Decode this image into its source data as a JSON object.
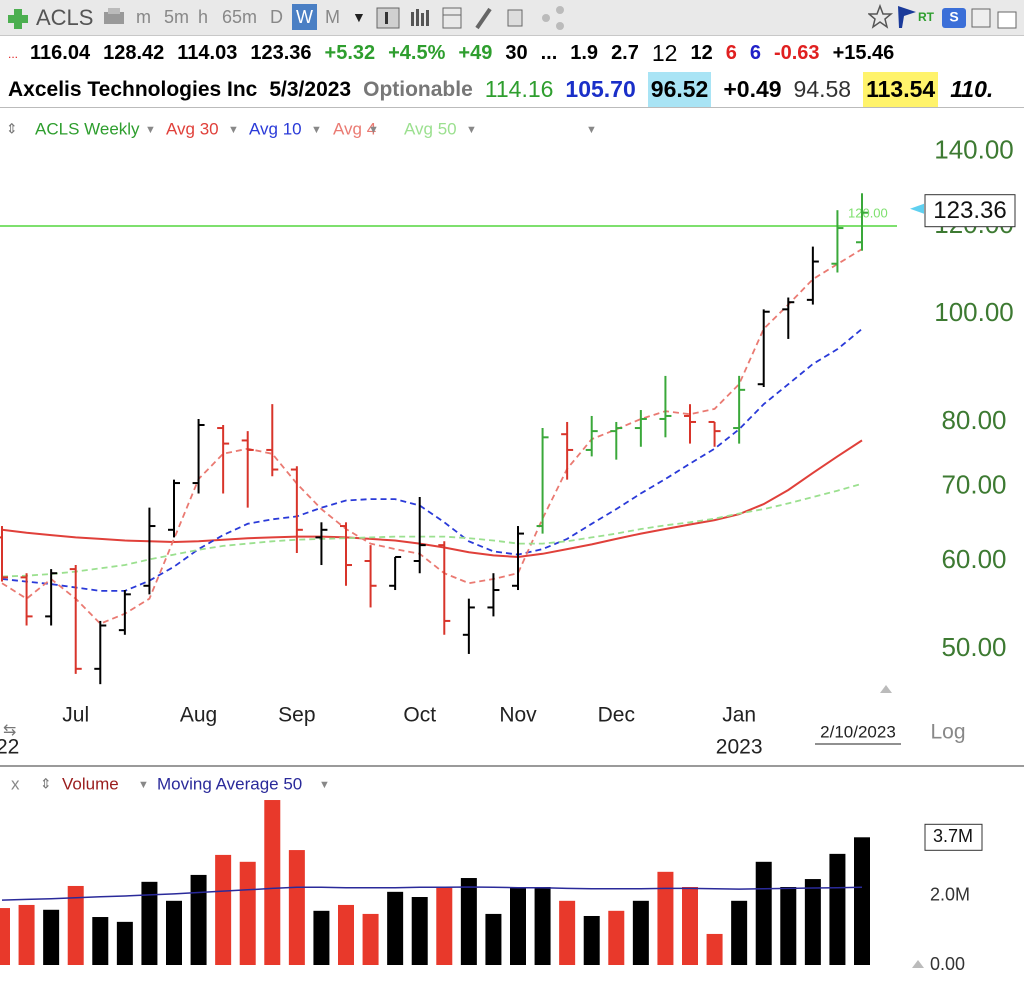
{
  "toolbar": {
    "symbol": "ACLS",
    "timeframes": [
      "m",
      "5m",
      "h",
      "65m",
      "D",
      "W",
      "M"
    ],
    "rt_label": "RT"
  },
  "quote_row": {
    "prefix": "...",
    "items": [
      {
        "text": "116.04",
        "color": "#000000",
        "bold": true
      },
      {
        "text": "128.42",
        "color": "#000000",
        "bold": true
      },
      {
        "text": "114.03",
        "color": "#000000",
        "bold": true
      },
      {
        "text": "123.36",
        "color": "#000000",
        "bold": true
      },
      {
        "text": "+5.32",
        "color": "#2e9e2e",
        "bold": true
      },
      {
        "text": "+4.5%",
        "color": "#2e9e2e",
        "bold": true
      },
      {
        "text": "+49",
        "color": "#2e9e2e",
        "bold": true
      },
      {
        "text": "30",
        "color": "#000000",
        "bold": true
      },
      {
        "text": "...",
        "color": "#000000",
        "bold": true
      },
      {
        "text": "1.9",
        "color": "#000000",
        "bold": true
      },
      {
        "text": "2.7",
        "color": "#000000",
        "bold": true
      },
      {
        "text": "12",
        "color": "#000000",
        "bold": false
      },
      {
        "text": "12",
        "color": "#000000",
        "bold": true
      },
      {
        "text": "6",
        "color": "#e02020",
        "bold": true
      },
      {
        "text": "6",
        "color": "#2020c8",
        "bold": true
      },
      {
        "text": "-0.63",
        "color": "#e02020",
        "bold": true
      },
      {
        "text": "+15.46",
        "color": "#000000",
        "bold": true
      }
    ]
  },
  "info_row": {
    "items": [
      {
        "text": "Axcelis Technologies Inc",
        "color": "#000000",
        "bold": true,
        "bg": null
      },
      {
        "text": "5/3/2023",
        "color": "#000000",
        "bold": true,
        "bg": null
      },
      {
        "text": "Optionable",
        "color": "#777777",
        "bold": true,
        "bg": null
      },
      {
        "text": "114.16",
        "color": "#2e9e2e",
        "bold": false,
        "bg": null
      },
      {
        "text": "105.70",
        "color": "#1a2fc8",
        "bold": true,
        "bg": null
      },
      {
        "text": "96.52",
        "color": "#000000",
        "bold": true,
        "bg": "#a9e4f5"
      },
      {
        "text": "+0.49",
        "color": "#000000",
        "bold": true,
        "bg": null
      },
      {
        "text": "94.58",
        "color": "#333333",
        "bold": false,
        "bg": null
      },
      {
        "text": "113.54",
        "color": "#000000",
        "bold": true,
        "bg": "#fff36b"
      },
      {
        "text": "110.",
        "color": "#000000",
        "bold": true,
        "bg": null
      }
    ]
  },
  "chart_data": [
    {
      "type": "ohlc",
      "title": "ACLS Weekly",
      "title_color": "#2e9e2e",
      "categories": [
        null,
        null,
        null,
        "Jul",
        null,
        null,
        null,
        null,
        "Aug",
        null,
        null,
        null,
        "Sep",
        null,
        null,
        null,
        null,
        "Oct",
        null,
        null,
        null,
        "Nov",
        null,
        null,
        null,
        "Dec",
        null,
        null,
        null,
        null,
        "Jan",
        null,
        null,
        null,
        null,
        null
      ],
      "series": [
        {
          "name": "ACLS Weekly",
          "open": [
            63,
            58,
            53.5,
            59,
            48,
            52,
            57,
            64,
            70.5,
            79,
            77,
            75.5,
            72.5,
            63,
            64.5,
            60,
            57,
            60,
            62,
            51.5,
            54.5,
            57,
            64.5,
            78,
            75.5,
            78.5,
            79,
            80.5,
            81,
            80,
            79,
            86.5,
            101,
            103,
            111,
            116.04
          ],
          "high": [
            64.5,
            58.5,
            59,
            59.5,
            53,
            56.5,
            67,
            71,
            80.5,
            79.5,
            78.5,
            83,
            73,
            65,
            65,
            62,
            60.5,
            68.5,
            62.5,
            55.5,
            58.5,
            64.5,
            79,
            80,
            81,
            80,
            82,
            88,
            83,
            80,
            88,
            101,
            103.5,
            115,
            124,
            128.42
          ],
          "low": [
            57.5,
            52.5,
            52.5,
            47.5,
            46.5,
            51.5,
            56,
            63,
            69,
            69,
            67,
            71.5,
            61,
            59.5,
            57,
            54.5,
            56.5,
            58.5,
            51.5,
            49.5,
            53.5,
            56.5,
            63.5,
            71,
            74.5,
            74,
            76,
            77.5,
            76.5,
            76,
            76.5,
            86,
            95,
            102,
            109,
            114.03
          ],
          "close": [
            58,
            53.5,
            58.5,
            48,
            52.5,
            56,
            64.5,
            70.5,
            79.5,
            76.5,
            75.5,
            72.5,
            64,
            64,
            59.5,
            57,
            60.5,
            62,
            53,
            54.5,
            56.5,
            63.5,
            77.5,
            75.5,
            78.5,
            79,
            80.5,
            81,
            80,
            78.5,
            85.5,
            100.5,
            102.5,
            111.5,
            119.5,
            123.36
          ],
          "colors": [
            "#d8342a",
            "#d8342a",
            "#000000",
            "#d8342a",
            "#000000",
            "#000000",
            "#000000",
            "#000000",
            "#000000",
            "#d8342a",
            "#d8342a",
            "#d8342a",
            "#d8342a",
            "#000000",
            "#d8342a",
            "#d8342a",
            "#000000",
            "#000000",
            "#d8342a",
            "#000000",
            "#000000",
            "#000000",
            "#3aa83a",
            "#d8342a",
            "#3aa83a",
            "#3aa83a",
            "#3aa83a",
            "#3aa83a",
            "#d8342a",
            "#d8342a",
            "#3aa83a",
            "#000000",
            "#000000",
            "#000000",
            "#3aa83a",
            "#3aa83a"
          ]
        }
      ],
      "overlays": [
        {
          "name": "Avg 30",
          "color": "#e0403a",
          "dashed": false,
          "values": [
            64,
            63.6,
            63.3,
            63,
            62.8,
            62.6,
            62.5,
            62.4,
            62.5,
            62.7,
            62.9,
            63,
            63.1,
            63.1,
            63,
            62.8,
            62.6,
            62.2,
            61.7,
            61.1,
            60.7,
            60.5,
            60.9,
            61.5,
            62.1,
            62.8,
            63.5,
            64.1,
            64.7,
            65.3,
            66.1,
            67.5,
            69.5,
            72,
            74.5,
            77
          ]
        },
        {
          "name": "Avg 10",
          "color": "#2a3ad8",
          "dashed": true,
          "values": [
            57.8,
            57.5,
            57.2,
            56.8,
            56.4,
            56.4,
            57.6,
            59.3,
            61.5,
            63.3,
            64.8,
            65.4,
            65.8,
            67,
            68,
            68.2,
            68.2,
            67.3,
            65,
            62.5,
            61.2,
            60.8,
            61.5,
            62.8,
            64.8,
            66.8,
            69,
            71.1,
            73.4,
            75.7,
            78.8,
            83,
            86.5,
            90.2,
            93,
            97
          ]
        },
        {
          "name": "Avg 4",
          "color": "#ea7a72",
          "dashed": true,
          "values": [
            57.3,
            55.5,
            57.8,
            55.5,
            52.7,
            53.8,
            55.5,
            62.8,
            71.1,
            74.9,
            75.7,
            74.9,
            70.4,
            66.8,
            64.1,
            62.2,
            61.5,
            60.9,
            58.5,
            57.3,
            57.8,
            58.5,
            65.5,
            72.6,
            77.2,
            78.8,
            80.5,
            81.8,
            81.3,
            82.2,
            86.5,
            97,
            102,
            107.5,
            110.9,
            114.4
          ]
        },
        {
          "name": "Avg 50",
          "color": "#9be08f",
          "dashed": true,
          "values": [
            58.1,
            58.2,
            58.4,
            58.7,
            59.1,
            59.5,
            60.2,
            60.8,
            61.4,
            61.9,
            62.2,
            62.5,
            62.7,
            62.8,
            62.9,
            63,
            63.1,
            63.1,
            63.1,
            62.9,
            62.6,
            62.2,
            62.2,
            62.5,
            63,
            63.5,
            64.1,
            64.6,
            65,
            65.5,
            66.2,
            66.8,
            67.6,
            68.5,
            69.4,
            70.4
          ]
        }
      ],
      "ylim": [
        45,
        151
      ],
      "log_scale": true,
      "yticks": [
        {
          "value": 140,
          "label": "140.00"
        },
        {
          "value": 120,
          "label": "120.00"
        },
        {
          "value": 100,
          "label": "100.00"
        },
        {
          "value": 80,
          "label": "80.00"
        },
        {
          "value": 70,
          "label": "70.00"
        },
        {
          "value": 60,
          "label": "60.00"
        },
        {
          "value": 50,
          "label": "50.00"
        }
      ],
      "axis_color": "#3d7a32",
      "price_line": {
        "value": 120,
        "label": "120.00",
        "color": "#7ee06e"
      },
      "last_value": 123.36,
      "left_label": "22",
      "year_label": "2023",
      "date_label": "2/10/2023",
      "scale_label": "Log"
    },
    {
      "type": "bar",
      "close_label": "x",
      "series": [
        {
          "name": "Volume",
          "color": "#9a1c1c",
          "values": [
            1650000,
            1740000,
            1600000,
            2290000,
            1390000,
            1250000,
            2410000,
            1860000,
            2610000,
            3190000,
            2990000,
            4780000,
            3330000,
            1570000,
            1740000,
            1480000,
            2120000,
            1970000,
            2260000,
            2520000,
            1480000,
            2260000,
            2260000,
            1860000,
            1420000,
            1570000,
            1860000,
            2700000,
            2260000,
            900000,
            1860000,
            2990000,
            2260000,
            2490000,
            3220000,
            3700000
          ],
          "colors": [
            "#e8392b",
            "#e8392b",
            "#000000",
            "#e8392b",
            "#000000",
            "#000000",
            "#000000",
            "#000000",
            "#000000",
            "#e8392b",
            "#e8392b",
            "#e8392b",
            "#e8392b",
            "#000000",
            "#e8392b",
            "#e8392b",
            "#000000",
            "#000000",
            "#e8392b",
            "#000000",
            "#000000",
            "#000000",
            "#000000",
            "#e8392b",
            "#000000",
            "#e8392b",
            "#000000",
            "#e8392b",
            "#e8392b",
            "#e8392b",
            "#000000",
            "#000000",
            "#000000",
            "#000000",
            "#000000",
            "#000000"
          ]
        },
        {
          "name": "Moving Average 50",
          "color": "#2a2a9a",
          "type": "line",
          "values": [
            1880000,
            1900000,
            1920000,
            1950000,
            1980000,
            2000000,
            2030000,
            2060000,
            2100000,
            2140000,
            2180000,
            2220000,
            2250000,
            2250000,
            2240000,
            2240000,
            2240000,
            2250000,
            2250000,
            2260000,
            2250000,
            2240000,
            2240000,
            2220000,
            2210000,
            2210000,
            2210000,
            2220000,
            2220000,
            2210000,
            2200000,
            2210000,
            2220000,
            2230000,
            2240000,
            2250000
          ]
        }
      ],
      "ylim": [
        0,
        5650000
      ],
      "yticks": [
        {
          "value": 0,
          "label": "0.00"
        },
        {
          "value": 2000000,
          "label": "2.0M"
        }
      ],
      "axis_color": "#333333",
      "last_value": {
        "value": 3700000,
        "label": "3.7M"
      }
    }
  ]
}
